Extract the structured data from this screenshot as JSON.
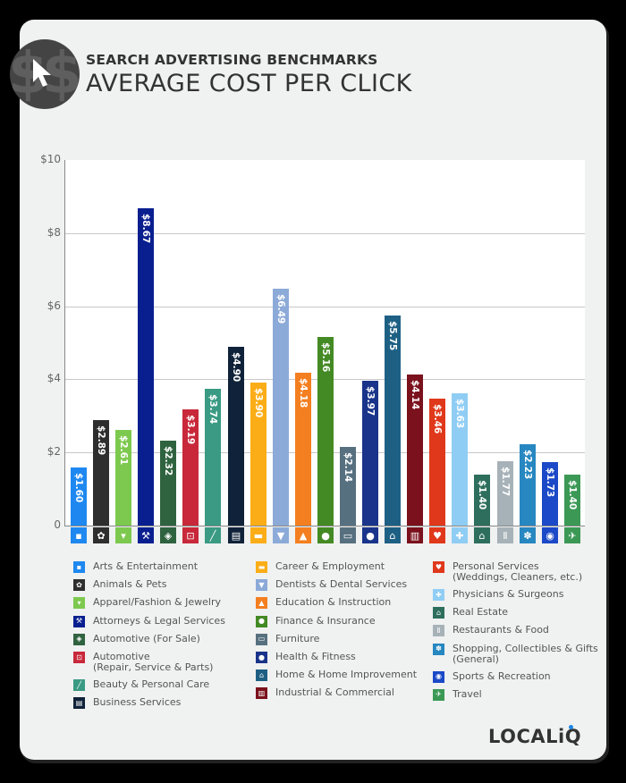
{
  "header": {
    "subtitle": "SEARCH ADVERTISING BENCHMARKS",
    "title": "AVERAGE COST PER CLICK",
    "badge_icon": "dollar-cursor-icon"
  },
  "brand": {
    "name": "LOCALiQ",
    "dot_color": "#1e88e5"
  },
  "y_ticks": [
    "$10",
    "$8",
    "$6",
    "$4",
    "$2",
    "0"
  ],
  "chart_data": {
    "type": "bar",
    "title": "AVERAGE COST PER CLICK",
    "subtitle": "SEARCH ADVERTISING BENCHMARKS",
    "xlabel": "",
    "ylabel": "",
    "ylim": [
      0,
      10
    ],
    "yticks": [
      0,
      2,
      4,
      6,
      8,
      10
    ],
    "ytick_labels": [
      "0",
      "$2",
      "$4",
      "$6",
      "$8",
      "$10"
    ],
    "grid": true,
    "legend_position": "bottom",
    "categories": [
      "Arts & Entertainment",
      "Animals & Pets",
      "Apparel/Fashion & Jewelry",
      "Attorneys & Legal Services",
      "Automotive (For Sale)",
      "Automotive (Repair, Service & Parts)",
      "Beauty & Personal Care",
      "Business Services",
      "Career & Employment",
      "Dentists & Dental Services",
      "Education & Instruction",
      "Finance & Insurance",
      "Furniture",
      "Health & Fitness",
      "Home & Home Improvement",
      "Industrial & Commercial",
      "Personal Services (Weddings, Cleaners, etc.)",
      "Physicians & Surgeons",
      "Real Estate",
      "Restaurants & Food",
      "Shopping, Collectibles & Gifts (General)",
      "Sports & Recreation",
      "Travel"
    ],
    "values": [
      1.6,
      2.89,
      2.61,
      8.67,
      2.32,
      3.19,
      3.74,
      4.9,
      3.9,
      6.49,
      4.18,
      5.16,
      2.14,
      3.97,
      5.75,
      4.14,
      3.46,
      3.63,
      1.4,
      1.77,
      2.23,
      1.73,
      1.4
    ],
    "value_labels": [
      "$1.60",
      "$2.89",
      "$2.61",
      "$8.67",
      "$2.32",
      "$3.19",
      "$3.74",
      "$4.90",
      "$3.90",
      "$6.49",
      "$4.18",
      "$5.16",
      "$2.14",
      "$3.97",
      "$5.75",
      "$4.14",
      "$3.46",
      "$3.63",
      "$1.40",
      "$1.77",
      "$2.23",
      "$1.73",
      "$1.40"
    ],
    "colors": [
      "#1e88f0",
      "#2e2e2e",
      "#7dc94f",
      "#0a1f8f",
      "#2f6340",
      "#c8283a",
      "#3a9a83",
      "#0f2239",
      "#fbad17",
      "#8caad8",
      "#f47f20",
      "#448a24",
      "#57707f",
      "#19348a",
      "#1e6084",
      "#7a111c",
      "#e0381b",
      "#90cdf4",
      "#2d6e5c",
      "#a6b2b8",
      "#2787c0",
      "#1b49c7",
      "#3b9955"
    ],
    "icons": [
      "image-icon",
      "paw-icon",
      "shirt-icon",
      "gavel-icon",
      "price-tag-icon",
      "car-icon",
      "brush-icon",
      "document-icon",
      "briefcase-icon",
      "tooth-icon",
      "graduation-cap-icon",
      "piggy-bank-icon",
      "armchair-icon",
      "apple-tape-icon",
      "house-icon",
      "factory-icon",
      "hand-heart-icon",
      "medical-cross-icon",
      "storefront-icon",
      "fork-knife-icon",
      "gift-bow-icon",
      "ball-icon",
      "airplane-icon"
    ],
    "icon_glyphs": [
      "▪",
      "✿",
      "▾",
      "⚒",
      "◈",
      "⊡",
      "╱",
      "▤",
      "▬",
      "▼",
      "▲",
      "●",
      "▭",
      "●",
      "⌂",
      "▥",
      "♥",
      "✚",
      "⌂",
      "Ⅱ",
      "✽",
      "◉",
      "✈"
    ]
  },
  "legend": {
    "columns": [
      [
        {
          "label": "Arts & Entertainment",
          "index": 0
        },
        {
          "label": "Animals & Pets",
          "index": 1
        },
        {
          "label": "Apparel/Fashion & Jewelry",
          "index": 2
        },
        {
          "label": "Attorneys & Legal Services",
          "index": 3
        },
        {
          "label": "Automotive (For Sale)",
          "index": 4
        },
        {
          "label": "Automotive",
          "label2": "(Repair, Service & Parts)",
          "index": 5
        },
        {
          "label": "Beauty & Personal Care",
          "index": 6
        },
        {
          "label": "Business Services",
          "index": 7
        }
      ],
      [
        {
          "label": "Career & Employment",
          "index": 8
        },
        {
          "label": "Dentists & Dental Services",
          "index": 9
        },
        {
          "label": "Education & Instruction",
          "index": 10
        },
        {
          "label": "Finance & Insurance",
          "index": 11
        },
        {
          "label": "Furniture",
          "index": 12
        },
        {
          "label": "Health & Fitness",
          "index": 13
        },
        {
          "label": "Home & Home Improvement",
          "index": 14
        },
        {
          "label": "Industrial & Commercial",
          "index": 15
        }
      ],
      [
        {
          "label": "Personal Services",
          "label2": "(Weddings, Cleaners, etc.)",
          "index": 16
        },
        {
          "label": "Physicians & Surgeons",
          "index": 17
        },
        {
          "label": "Real Estate",
          "index": 18
        },
        {
          "label": "Restaurants & Food",
          "index": 19
        },
        {
          "label": "Shopping, Collectibles & Gifts",
          "label2": "(General)",
          "index": 20
        },
        {
          "label": "Sports & Recreation",
          "index": 21
        },
        {
          "label": "Travel",
          "index": 22
        }
      ]
    ]
  }
}
